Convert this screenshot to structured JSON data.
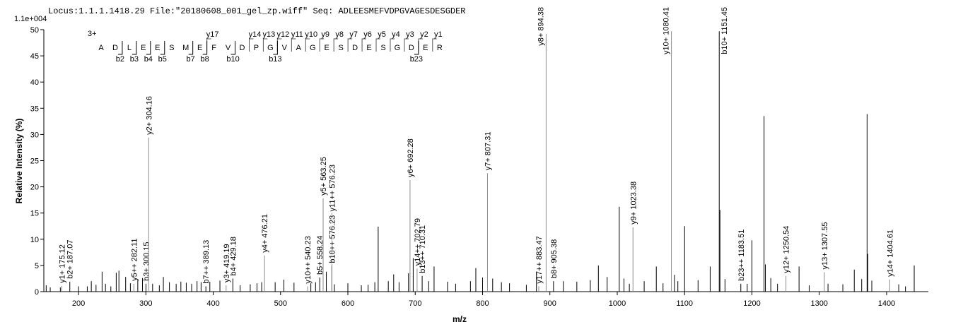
{
  "chart_data": {
    "type": "spectrum",
    "title": "Locus:1.1.1.1418.29 File:\"20180608_001_gel_zp.wiff\"   Seq: ADLEESMEFVDPGVAGESDESGDER",
    "scale_label": "1.1e+004",
    "xlabel": "m/z",
    "ylabel": "Relative   Intensity (%)",
    "xlim": [
      148.5,
      1462
    ],
    "ylim": [
      0,
      50
    ],
    "xticks": [
      200,
      300,
      400,
      500,
      600,
      700,
      800,
      900,
      1000,
      1100,
      1200,
      1300,
      1400
    ],
    "yticks": [
      0,
      5,
      10,
      15,
      20,
      25,
      30,
      35,
      40,
      45,
      50
    ],
    "color": "#000000",
    "label_colors": {
      "y": "#8c8c8c",
      "b": "#000000"
    },
    "x": [
      175.12,
      187.07,
      282.11,
      300.15,
      304.16,
      389.13,
      419.19,
      429.18,
      476.21,
      540.23,
      558.24,
      563.25,
      576.23,
      576.23,
      692.28,
      702.79,
      710.31,
      807.31,
      883.47,
      894.38,
      905.38,
      1023.38,
      1080.41,
      1151.45,
      1183.51,
      1250.54,
      1307.55,
      1404.61,
      645,
      1003,
      1100,
      1152.5,
      1200,
      1218,
      1220,
      1371,
      1372,
      152,
      158,
      173,
      200,
      213,
      219,
      226,
      235,
      240,
      248,
      256,
      260,
      270,
      277,
      288,
      295,
      310,
      320,
      326,
      335,
      345,
      352,
      360,
      368,
      376,
      382,
      395,
      410,
      440,
      455,
      465,
      472,
      492,
      505,
      520,
      545,
      552,
      568,
      580,
      600,
      620,
      630,
      640,
      660,
      668,
      676,
      690,
      697,
      720,
      728,
      748,
      760,
      782,
      790,
      800,
      815,
      828,
      840,
      865,
      880,
      920,
      940,
      960,
      972,
      985,
      1010,
      1018,
      1040,
      1058,
      1068,
      1085,
      1090,
      1120,
      1138,
      1160,
      1193,
      1228,
      1238,
      1270,
      1285,
      1313,
      1335,
      1352,
      1363,
      1378,
      1418,
      1428,
      1441
    ],
    "values": [
      1.1,
      1.9,
      1.5,
      1.5,
      29.4,
      1.0,
      1.2,
      2.5,
      6.9,
      1.0,
      2.7,
      17.8,
      4.9,
      4.9,
      21.3,
      4.4,
      3.0,
      22.6,
      1.0,
      49.2,
      2.0,
      12.3,
      49.7,
      49.7,
      1.5,
      3.0,
      3.7,
      2.3,
      12.4,
      16.2,
      12.5,
      15.6,
      9.8,
      33.5,
      5.2,
      33.9,
      7.2,
      1.2,
      0.8,
      0.8,
      1.0,
      1.0,
      2.0,
      1.3,
      3.8,
      1.5,
      1.0,
      3.6,
      4.0,
      2.8,
      1.6,
      2.2,
      2.6,
      1.5,
      1.2,
      2.8,
      1.8,
      1.5,
      1.9,
      1.7,
      1.5,
      2.0,
      1.8,
      1.9,
      2.1,
      1.2,
      1.4,
      1.6,
      1.8,
      1.8,
      2.3,
      1.7,
      1.6,
      1.8,
      3.8,
      1.4,
      1.6,
      1.2,
      1.3,
      1.8,
      2.0,
      3.3,
      1.8,
      3.5,
      6.4,
      2.0,
      4.8,
      1.9,
      1.5,
      2.0,
      4.5,
      2.7,
      2.5,
      1.8,
      1.6,
      1.3,
      3.8,
      2.0,
      1.9,
      2.2,
      5.0,
      2.8,
      2.5,
      1.5,
      2.0,
      4.8,
      1.6,
      3.2,
      2.0,
      2.2,
      4.8,
      2.4,
      1.5,
      2.6,
      1.5,
      4.8,
      1.2,
      1.5,
      1.4,
      4.2,
      2.4,
      2.1,
      1.4,
      1.0,
      5.0
    ],
    "labels": [
      "y1+ 175.12",
      "b2+ 187.07",
      "y5++ 282.11",
      "b3+ 300.15",
      "y2+ 304.16",
      "b7++ 389.13",
      "y3+ 419.19",
      "b4+ 429.18",
      "y4+ 476.21",
      "y10++ 540.23",
      "b5+ 558.24",
      "y5+ 563.25",
      "b10++ 576.23",
      "y11++ 576.23",
      "y6+ 692.28",
      "y14++ 702.79",
      "b13++ 710.31",
      "y7+ 807.31",
      "y17++ 883.47",
      "y8+ 894.38",
      "b8+ 905.38",
      "y9+ 1023.38",
      "y10+ 1080.41",
      "b10+ 1151.45",
      "b23++ 1183.51",
      "y12+ 1250.54",
      "y13+ 1307.55",
      "y14+ 1404.61",
      null,
      null,
      null,
      null,
      null,
      null,
      null,
      null,
      null,
      null,
      null,
      null,
      null,
      null,
      null,
      null,
      null,
      null,
      null,
      null,
      null,
      null,
      null,
      null,
      null,
      null,
      null,
      null,
      null,
      null,
      null,
      null,
      null,
      null,
      null,
      null,
      null,
      null,
      null,
      null,
      null,
      null,
      null,
      null,
      null,
      null,
      null,
      null,
      null,
      null,
      null,
      null,
      null,
      null,
      null,
      null,
      null,
      null,
      null,
      null,
      null,
      null,
      null,
      null,
      null,
      null,
      null,
      null,
      null,
      null,
      null,
      null,
      null,
      null,
      null,
      null,
      null,
      null,
      null,
      null,
      null,
      null,
      null,
      null,
      null,
      null,
      null,
      null,
      null,
      null,
      null,
      null
    ],
    "sequence": {
      "charge": "3+",
      "residues": [
        "A",
        "D",
        "L",
        "E",
        "E",
        "S",
        "M",
        "E",
        "F",
        "V",
        "D",
        "P",
        "G",
        "V",
        "A",
        "G",
        "E",
        "S",
        "D",
        "E",
        "S",
        "G",
        "D",
        "E",
        "R"
      ],
      "y_ions": [
        "y17",
        "y14",
        "y13",
        "y12",
        "y11",
        "y10",
        "y9",
        "y8",
        "y7",
        "y6",
        "y5",
        "y4",
        "y3",
        "y2",
        "y1"
      ],
      "b_ions": [
        "b2",
        "b3",
        "b4",
        "b5",
        "b7",
        "b8",
        "b10",
        "b13",
        "b23"
      ]
    }
  }
}
